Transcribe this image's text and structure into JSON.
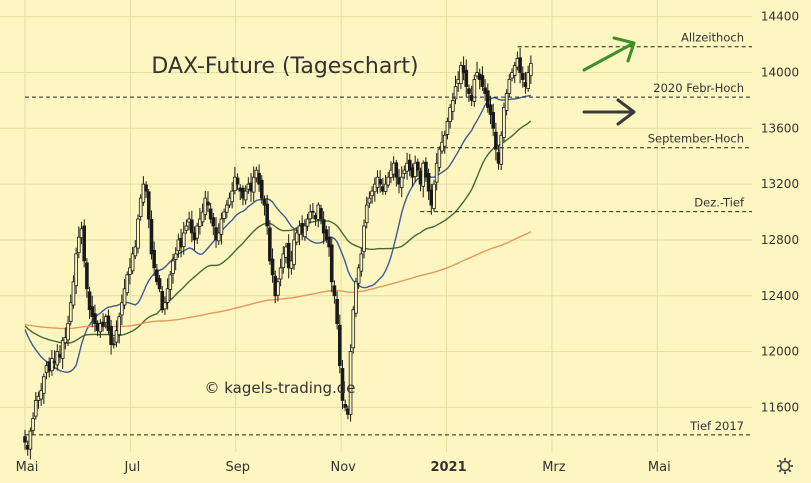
{
  "chart_data": {
    "type": "candlestick",
    "title": "DAX-Future (Tageschart)",
    "watermark": "© kagels-trading.de",
    "ylim": [
      11280,
      14520
    ],
    "y_ticks": [
      11600,
      12000,
      12400,
      12800,
      13200,
      13600,
      14000,
      14400
    ],
    "x_tick_labels": [
      {
        "label": "Mai",
        "month": 0,
        "bold": false
      },
      {
        "label": "Jul",
        "month": 2,
        "bold": false
      },
      {
        "label": "Sep",
        "month": 4,
        "bold": false
      },
      {
        "label": "Nov",
        "month": 6,
        "bold": false
      },
      {
        "label": "2021",
        "month": 8,
        "bold": true
      },
      {
        "label": "Mrz",
        "month": 10,
        "bold": false
      },
      {
        "label": "Mai",
        "month": 12,
        "bold": false
      }
    ],
    "x_range_months": [
      0,
      12.5
    ],
    "levels": [
      {
        "name": "Allzeithoch",
        "value": 14185,
        "from_month": 9.35
      },
      {
        "name": "2020 Febr-Hoch",
        "value": 13824,
        "from_month": 0
      },
      {
        "name": "September-Hoch",
        "value": 13461,
        "from_month": 4.1
      },
      {
        "name": "Dez.-Tief",
        "value": 13003,
        "from_month": 7.5
      },
      {
        "name": "Tief 2017",
        "value": 11403,
        "from_month": 0
      }
    ],
    "current_price": 14064,
    "colors": {
      "background": "#fdf6c0",
      "candle": "#1a1a1a",
      "sma_fast": "#3b5b9a",
      "sma_mid": "#3f6a3a",
      "sma_slow": "#e8975a",
      "arrow_up": "#3e8f2a",
      "arrow_flat": "#3a3a3a",
      "price_box": "#1f1f1f",
      "current_box": "#2e6b22"
    },
    "closes": [
      11350,
      11300,
      11430,
      11520,
      11650,
      11680,
      11720,
      11820,
      11900,
      11860,
      11950,
      11920,
      12000,
      11960,
      12080,
      12100,
      12200,
      12350,
      12500,
      12700,
      12820,
      12880,
      12650,
      12450,
      12300,
      12250,
      12200,
      12150,
      12200,
      12180,
      12250,
      12150,
      12050,
      12050,
      12150,
      12250,
      12350,
      12450,
      12550,
      12600,
      12700,
      12750,
      12950,
      13100,
      13200,
      13150,
      12950,
      12700,
      12600,
      12500,
      12450,
      12300,
      12350,
      12450,
      12550,
      12650,
      12700,
      12800,
      12750,
      12850,
      12900,
      12950,
      12850,
      12800,
      12900,
      12950,
      13000,
      13100,
      13050,
      12950,
      12900,
      12800,
      12850,
      12950,
      13000,
      13050,
      13100,
      13150,
      13250,
      13200,
      13150,
      13100,
      13150,
      13200,
      13150,
      13250,
      13300,
      13200,
      13100,
      13050,
      12900,
      12650,
      12550,
      12400,
      12500,
      12600,
      12700,
      12750,
      12600,
      12650,
      12800,
      12850,
      12900,
      12850,
      12900,
      12950,
      13000,
      13000,
      12950,
      13050,
      12950,
      12850,
      12800,
      12750,
      12500,
      12400,
      12200,
      11900,
      11650,
      11600,
      11550,
      12000,
      12300,
      12500,
      12600,
      12700,
      12900,
      13050,
      13100,
      13150,
      13200,
      13250,
      13200,
      13150,
      13200,
      13250,
      13300,
      13350,
      13250,
      13200,
      13250,
      13300,
      13350,
      13300,
      13250,
      13350,
      13300,
      13200,
      13350,
      13250,
      13150,
      13050,
      13200,
      13350,
      13450,
      13500,
      13550,
      13650,
      13750,
      13800,
      13900,
      13950,
      14050,
      14000,
      13900,
      13850,
      13800,
      13950,
      14000,
      13950,
      13900,
      13850,
      13750,
      13700,
      13600,
      13450,
      13350,
      13550,
      13750,
      13850,
      13950,
      14000,
      14050,
      14100,
      14000,
      13950,
      13900,
      14000,
      14064
    ]
  }
}
